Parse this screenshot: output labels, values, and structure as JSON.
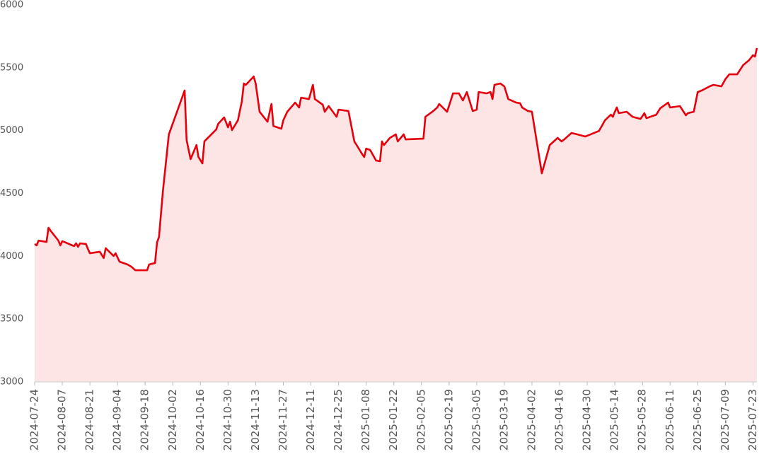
{
  "chart_data": {
    "type": "area",
    "color": "#e5000b",
    "fill": "#fde4e5",
    "x": [
      "2024-07-24",
      "2024-07-25",
      "2024-07-26",
      "2024-07-30",
      "2024-07-31",
      "2024-08-01",
      "2024-08-05",
      "2024-08-06",
      "2024-08-07",
      "2024-08-08",
      "2024-08-12",
      "2024-08-13",
      "2024-08-14",
      "2024-08-15",
      "2024-08-16",
      "2024-08-19",
      "2024-08-20",
      "2024-08-21",
      "2024-08-26",
      "2024-08-28",
      "2024-08-29",
      "2024-09-02",
      "2024-09-03",
      "2024-09-05",
      "2024-09-09",
      "2024-09-11",
      "2024-09-13",
      "2024-09-19",
      "2024-09-20",
      "2024-09-23",
      "2024-09-24",
      "2024-09-25",
      "2024-09-27",
      "2024-09-30",
      "2024-10-08",
      "2024-10-09",
      "2024-10-11",
      "2024-10-14",
      "2024-10-15",
      "2024-10-17",
      "2024-10-18",
      "2024-10-24",
      "2024-10-25",
      "2024-10-28",
      "2024-10-30",
      "2024-10-31",
      "2024-11-01",
      "2024-11-04",
      "2024-11-06",
      "2024-11-07",
      "2024-11-08",
      "2024-11-12",
      "2024-11-13",
      "2024-11-15",
      "2024-11-19",
      "2024-11-21",
      "2024-11-22",
      "2024-11-26",
      "2024-11-27",
      "2024-11-29",
      "2024-12-03",
      "2024-12-05",
      "2024-12-06",
      "2024-12-10",
      "2024-12-12",
      "2024-12-13",
      "2024-12-17",
      "2024-12-18",
      "2024-12-20",
      "2024-12-24",
      "2024-12-25",
      "2024-12-30",
      "2025-01-02",
      "2025-01-06",
      "2025-01-07",
      "2025-01-08",
      "2025-01-10",
      "2025-01-13",
      "2025-01-15",
      "2025-01-16",
      "2025-01-17",
      "2025-01-20",
      "2025-01-23",
      "2025-01-24",
      "2025-01-27",
      "2025-01-28",
      "2025-02-06",
      "2025-02-07",
      "2025-02-11",
      "2025-02-13",
      "2025-02-14",
      "2025-02-18",
      "2025-02-21",
      "2025-02-24",
      "2025-02-26",
      "2025-02-28",
      "2025-03-03",
      "2025-03-05",
      "2025-03-06",
      "2025-03-10",
      "2025-03-12",
      "2025-03-13",
      "2025-03-14",
      "2025-03-17",
      "2025-03-19",
      "2025-03-21",
      "2025-03-25",
      "2025-03-27",
      "2025-03-28",
      "2025-03-31",
      "2025-04-02",
      "2025-04-07",
      "2025-04-11",
      "2025-04-15",
      "2025-04-17",
      "2025-04-18",
      "2025-04-22",
      "2025-04-25",
      "2025-04-29",
      "2025-05-06",
      "2025-05-09",
      "2025-05-12",
      "2025-05-13",
      "2025-05-14",
      "2025-05-15",
      "2025-05-16",
      "2025-05-20",
      "2025-05-23",
      "2025-05-27",
      "2025-05-29",
      "2025-05-30",
      "2025-06-04",
      "2025-06-06",
      "2025-06-10",
      "2025-06-11",
      "2025-06-16",
      "2025-06-19",
      "2025-06-20",
      "2025-06-23",
      "2025-06-25",
      "2025-06-27",
      "2025-07-01",
      "2025-07-03",
      "2025-07-07",
      "2025-07-09",
      "2025-07-11",
      "2025-07-15",
      "2025-07-18",
      "2025-07-21",
      "2025-07-23",
      "2025-07-24",
      "2025-07-25"
    ],
    "values": [
      4098,
      4087,
      4125,
      4114,
      4227,
      4205,
      4125,
      4087,
      4120,
      4114,
      4087,
      4081,
      4103,
      4075,
      4103,
      4098,
      4058,
      4024,
      4036,
      3986,
      4064,
      4002,
      4024,
      3957,
      3935,
      3917,
      3889,
      3889,
      3935,
      3946,
      4109,
      4154,
      4520,
      4970,
      5319,
      4925,
      4773,
      4885,
      4790,
      4739,
      4914,
      5009,
      5054,
      5105,
      5026,
      5071,
      5004,
      5082,
      5234,
      5375,
      5364,
      5431,
      5375,
      5150,
      5071,
      5212,
      5037,
      5015,
      5082,
      5150,
      5223,
      5184,
      5262,
      5251,
      5364,
      5251,
      5206,
      5150,
      5195,
      5110,
      5167,
      5156,
      4914,
      4812,
      4790,
      4857,
      4846,
      4762,
      4756,
      4914,
      4885,
      4942,
      4970,
      4914,
      4970,
      4930,
      4936,
      5110,
      5156,
      5184,
      5212,
      5150,
      5296,
      5296,
      5240,
      5307,
      5156,
      5167,
      5307,
      5296,
      5307,
      5251,
      5364,
      5375,
      5352,
      5251,
      5223,
      5218,
      5184,
      5156,
      5150,
      4660,
      4885,
      4942,
      4914,
      4925,
      4981,
      4970,
      4953,
      4998,
      5082,
      5127,
      5110,
      5150,
      5184,
      5139,
      5150,
      5110,
      5093,
      5139,
      5099,
      5127,
      5178,
      5223,
      5184,
      5195,
      5122,
      5139,
      5150,
      5307,
      5319,
      5352,
      5364,
      5352,
      5409,
      5448,
      5448,
      5521,
      5560,
      5600,
      5589,
      5657
    ],
    "xlim": [
      "2024-07-24",
      "2025-07-25"
    ],
    "xticks": [
      "2024-07-24",
      "2024-08-07",
      "2024-08-21",
      "2024-09-04",
      "2024-09-18",
      "2024-10-02",
      "2024-10-16",
      "2024-10-30",
      "2024-11-13",
      "2024-11-27",
      "2024-12-11",
      "2024-12-25",
      "2025-01-08",
      "2025-01-22",
      "2025-02-05",
      "2025-02-19",
      "2025-03-05",
      "2025-03-19",
      "2025-04-02",
      "2025-04-16",
      "2025-04-30",
      "2025-05-14",
      "2025-05-28",
      "2025-06-11",
      "2025-06-25",
      "2025-07-09",
      "2025-07-23"
    ],
    "ylim": [
      3000,
      6000
    ],
    "yticks": [
      3000,
      3500,
      4000,
      4500,
      5000,
      5500,
      6000
    ]
  }
}
